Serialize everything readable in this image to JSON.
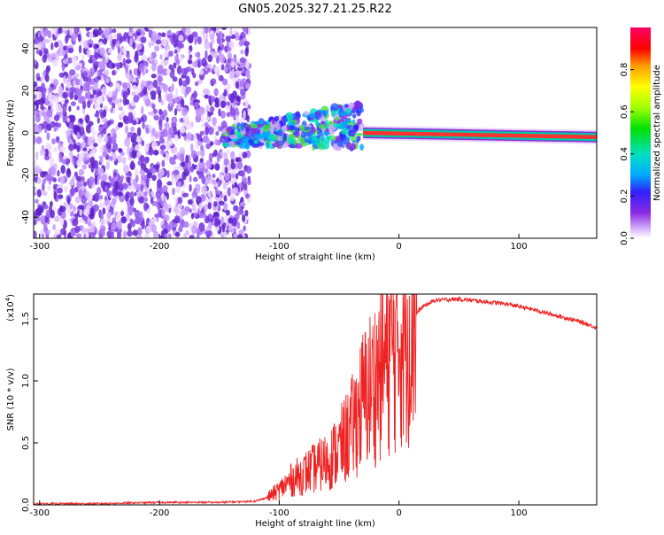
{
  "title": "GN05.2025.327.21.25.R22",
  "chart_data": [
    {
      "type": "heatmap",
      "xlabel": "Height of straight line (km)",
      "ylabel": "Frequency (Hz)",
      "xlim": [
        -305,
        165
      ],
      "ylim": [
        -50,
        50
      ],
      "xticks": [
        -300,
        -200,
        -100,
        0,
        100
      ],
      "xtick_labels": [
        "-300",
        "-200",
        "-100",
        "0",
        "100"
      ],
      "yticks": [
        -40,
        -20,
        0,
        20,
        40
      ],
      "ytick_labels": [
        "-40",
        "-20",
        "0",
        "20",
        "40"
      ],
      "colorbar": {
        "label": "Normalized spectral amplitude",
        "range": [
          0,
          1
        ],
        "ticks": [
          0.0,
          0.2,
          0.4,
          0.6,
          0.8
        ],
        "tick_labels": [
          "0.0",
          "0.2",
          "0.4",
          "0.6",
          "0.8"
        ]
      },
      "regions": [
        {
          "name": "noise",
          "x_range": [
            -305,
            -125
          ],
          "freq_range": [
            -50,
            50
          ],
          "amplitude": 0.1
        },
        {
          "name": "transition",
          "x_range": [
            -145,
            -30
          ],
          "freq_start": -2,
          "freq_end": 4,
          "amplitude": 0.35
        },
        {
          "name": "carrier",
          "x_range": [
            -30,
            165
          ],
          "freq_start": 0,
          "freq_end": -2,
          "amplitude": 0.95
        }
      ]
    },
    {
      "type": "line",
      "xlabel": "Height of straight line (km)",
      "ylabel": "SNR (10 * v/v)",
      "multiplier_label": "(x10",
      "multiplier_exp": "4",
      "xlim": [
        -305,
        165
      ],
      "ylim": [
        0,
        1.7
      ],
      "xticks": [
        -300,
        -200,
        -100,
        0,
        100
      ],
      "xtick_labels": [
        "-300",
        "-200",
        "-100",
        "0",
        "100"
      ],
      "yticks": [
        0.0,
        0.5,
        1.0,
        1.5
      ],
      "ytick_labels": [
        "0.0",
        "0.5",
        "1.0",
        "1.5"
      ],
      "series": [
        {
          "name": "SNR",
          "color": "#ee2222",
          "x": [
            -305,
            -250,
            -200,
            -150,
            -120,
            -110,
            -100,
            -90,
            -80,
            -70,
            -60,
            -50,
            -40,
            -30,
            -20,
            -15,
            -10,
            0,
            10,
            20,
            30,
            50,
            70,
            90,
            110,
            130,
            150,
            165
          ],
          "y": [
            0.01,
            0.01,
            0.02,
            0.02,
            0.03,
            0.06,
            0.12,
            0.2,
            0.25,
            0.3,
            0.35,
            0.45,
            0.6,
            0.85,
            1.0,
            1.1,
            1.2,
            1.35,
            1.5,
            1.6,
            1.65,
            1.66,
            1.64,
            1.62,
            1.58,
            1.53,
            1.48,
            1.43
          ]
        }
      ]
    }
  ]
}
